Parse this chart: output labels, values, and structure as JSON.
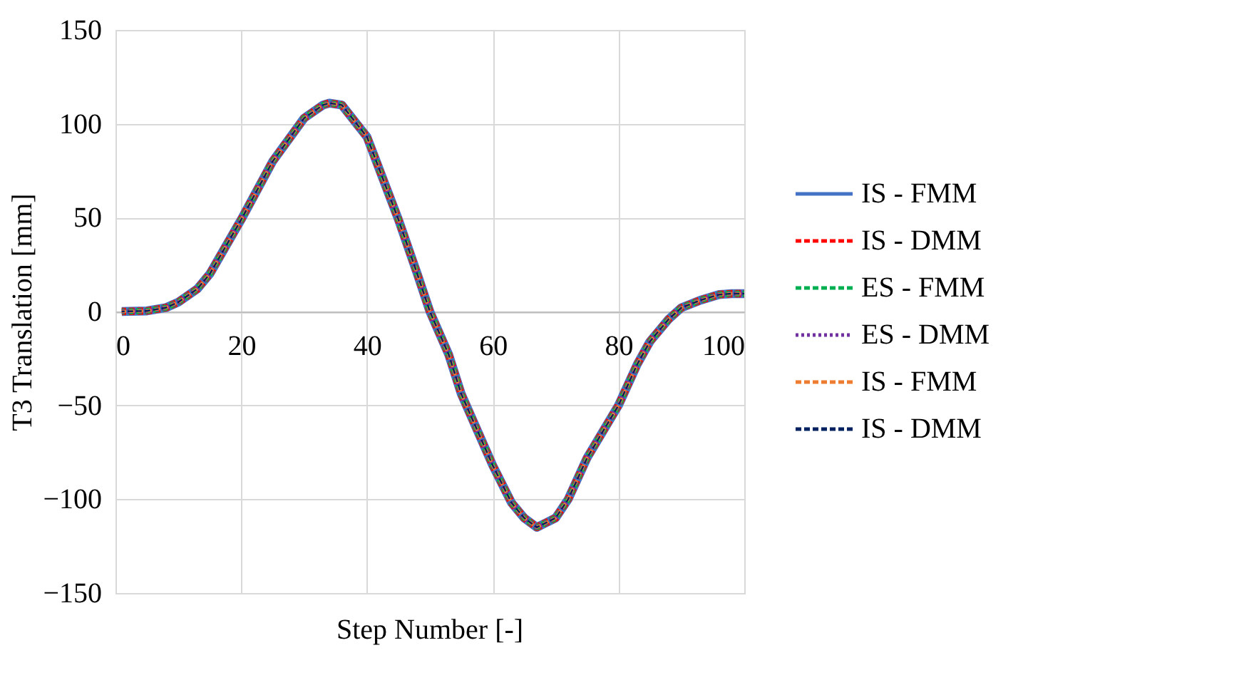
{
  "chart_data": {
    "type": "line",
    "xlabel": "Step Number [-]",
    "ylabel": "T3 Translation [mm]",
    "x": [
      1,
      5,
      8,
      10,
      13,
      15,
      20,
      25,
      30,
      33,
      34,
      36,
      40,
      45,
      48,
      50,
      53,
      55,
      60,
      63,
      65,
      67,
      70,
      72,
      75,
      80,
      83,
      85,
      88,
      90,
      93,
      96,
      98,
      100
    ],
    "series": [
      {
        "name": "IS - FMM",
        "color": "#4472c4",
        "line_style": "solid",
        "values": [
          0,
          0.3,
          2,
          5,
          12,
          20,
          49,
          80,
          103,
          110,
          111,
          110,
          93,
          49,
          20,
          0,
          -23,
          -44,
          -82,
          -102,
          -110,
          -115,
          -110,
          -100,
          -78,
          -50,
          -28,
          -16,
          -4,
          2,
          6,
          9,
          9.5,
          9.5
        ]
      },
      {
        "name": "IS - DMM",
        "color": "#ff0000",
        "line_style": "dashed",
        "values": [
          0,
          0.3,
          2,
          5,
          12,
          20,
          49,
          80,
          103,
          110,
          111,
          110,
          93,
          49,
          20,
          0,
          -23,
          -44,
          -82,
          -102,
          -110,
          -115,
          -110,
          -100,
          -78,
          -50,
          -28,
          -16,
          -4,
          2,
          6,
          9,
          9.5,
          9.5
        ]
      },
      {
        "name": "ES - FMM",
        "color": "#00b050",
        "line_style": "dashed",
        "values": [
          0,
          0.3,
          2,
          5,
          12,
          20,
          49,
          80,
          103,
          110,
          111,
          110,
          93,
          49,
          20,
          0,
          -23,
          -44,
          -82,
          -102,
          -110,
          -115,
          -110,
          -100,
          -78,
          -50,
          -28,
          -16,
          -4,
          2,
          6,
          9,
          9.5,
          9.5
        ]
      },
      {
        "name": "ES - DMM",
        "color": "#7030a0",
        "line_style": "dotted",
        "values": [
          0,
          0.3,
          2,
          5,
          12,
          20,
          49,
          80,
          103,
          110,
          111,
          110,
          93,
          49,
          20,
          0,
          -23,
          -44,
          -82,
          -102,
          -110,
          -115,
          -110,
          -100,
          -78,
          -50,
          -28,
          -16,
          -4,
          2,
          6,
          9,
          9.5,
          9.5
        ]
      },
      {
        "name": "IS - FMM",
        "color": "#ed7d31",
        "line_style": "dashed",
        "values": [
          0,
          0.3,
          2,
          5,
          12,
          20,
          49,
          80,
          103,
          110,
          111,
          110,
          93,
          49,
          20,
          0,
          -23,
          -44,
          -82,
          -102,
          -110,
          -115,
          -110,
          -100,
          -78,
          -50,
          -28,
          -16,
          -4,
          2,
          6,
          9,
          9.5,
          9.5
        ]
      },
      {
        "name": "IS - DMM",
        "color": "#002060",
        "line_style": "dashed",
        "values": [
          0,
          0.3,
          2,
          5,
          12,
          20,
          49,
          80,
          103,
          110,
          111,
          110,
          93,
          49,
          20,
          0,
          -23,
          -44,
          -82,
          -102,
          -110,
          -115,
          -110,
          -100,
          -78,
          -50,
          -28,
          -16,
          -4,
          2,
          6,
          9,
          9.5,
          9.5
        ]
      }
    ],
    "xlim": [
      0,
      100
    ],
    "xticks": [
      0,
      20,
      40,
      60,
      80,
      100
    ],
    "ylim": [
      -150,
      150
    ],
    "yticks": [
      -150,
      -100,
      -50,
      0,
      50,
      100,
      150
    ],
    "grid": true,
    "legend": "right"
  }
}
